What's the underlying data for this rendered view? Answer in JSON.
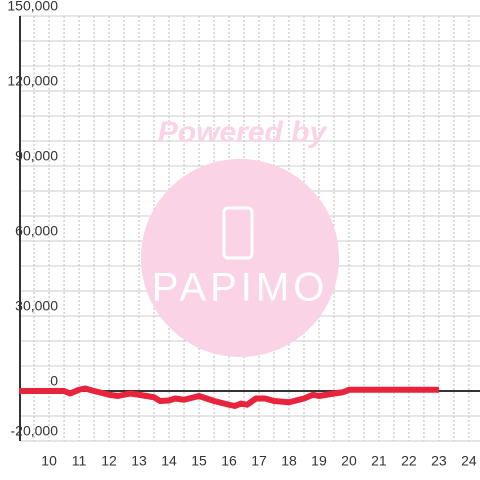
{
  "chart_data": {
    "type": "line",
    "watermark": {
      "line1": "Powered by",
      "line2": "PAPIMO"
    },
    "x": [
      9.0,
      9.5,
      10.0,
      10.5,
      10.7,
      11.0,
      11.2,
      11.5,
      12.0,
      12.3,
      12.5,
      12.7,
      13.0,
      13.5,
      13.7,
      14.0,
      14.2,
      14.5,
      15.0,
      15.5,
      16.0,
      16.2,
      16.4,
      16.6,
      16.9,
      17.2,
      17.5,
      18.0,
      18.5,
      18.8,
      19.0,
      19.5,
      19.8,
      20.0,
      21.0,
      22.0,
      23.0
    ],
    "series": [
      {
        "color": "#e8243c",
        "values": [
          0,
          0,
          0,
          0,
          -1000,
          500,
          1000,
          0,
          -1500,
          -2000,
          -1500,
          -1000,
          -1500,
          -2500,
          -4000,
          -3800,
          -3000,
          -3500,
          -2000,
          -4000,
          -5500,
          -6000,
          -5000,
          -5500,
          -3000,
          -3000,
          -4000,
          -4500,
          -3000,
          -1500,
          -2000,
          -1000,
          -500,
          500,
          500,
          500,
          500
        ]
      }
    ],
    "xlim": [
      9.03,
      24.37
    ],
    "xticks": [
      10,
      11,
      12,
      13,
      14,
      15,
      16,
      17,
      18,
      19,
      20,
      21,
      22,
      23,
      24
    ],
    "minor_xticks": [
      9.5,
      10.5,
      11.5,
      12.5,
      13.5,
      14.5,
      15.5,
      16.5,
      17.5,
      18.5,
      19.5,
      20.5,
      21.5,
      22.5,
      23.5
    ],
    "ylim": [
      -20000,
      150000
    ],
    "yticks": [
      {
        "value": -20000,
        "label": "-20,000"
      },
      0,
      {
        "value": 30000,
        "label": "30,000"
      },
      {
        "value": 60000,
        "label": "60,000"
      },
      {
        "value": 90000,
        "label": "90,000"
      },
      {
        "value": 120000,
        "label": "120,000"
      },
      {
        "value": 150000,
        "label": "150,000"
      }
    ],
    "minor_yticks": [
      -10000,
      10000,
      20000,
      40000,
      50000,
      70000,
      80000,
      100000,
      110000,
      130000,
      140000
    ],
    "grid": true
  }
}
